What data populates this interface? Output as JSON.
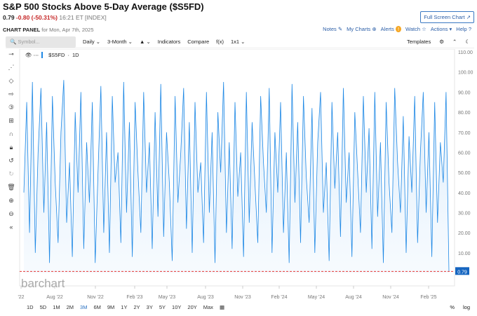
{
  "header": {
    "title": "S&P 500 Stocks Above 5-Day Average ($S5FD)",
    "last": "0.79",
    "change": "-0.80 (-50.31%)",
    "time": "16:21 ET [INDEX]",
    "full_screen": "Full Screen Chart",
    "panel_label": "CHART PANEL",
    "panel_date": "for Mon, Apr 7th, 2025"
  },
  "links": [
    "Notes",
    "My Charts",
    "Alerts",
    "Watch",
    "Actions",
    "Help"
  ],
  "toolbar": {
    "symbol_placeholder": "Symbol...",
    "interval": "Daily",
    "period": "3-Month",
    "indicators": "Indicators",
    "compare": "Compare",
    "fx": "f(x)",
    "layout": "1x1",
    "templates": "Templates"
  },
  "legend": {
    "symbol": "$S5FD",
    "interval": "1D"
  },
  "logo": "barchart",
  "ranges": [
    "1D",
    "5D",
    "1M",
    "2M",
    "3M",
    "6M",
    "9M",
    "1Y",
    "2Y",
    "3Y",
    "5Y",
    "10Y",
    "20Y",
    "Max"
  ],
  "active_range": "3M",
  "right_controls": [
    "%",
    "log"
  ],
  "colors": {
    "line": "#1e88e5",
    "price_line": "#e53935",
    "last_badge": "#1565c0"
  },
  "chart_data": {
    "type": "area",
    "title": "",
    "x_tick_labels": [
      "'22",
      "Aug '22",
      "Nov '22",
      "Feb '23",
      "May '23",
      "Aug '23",
      "Nov '23",
      "Feb '24",
      "May '24",
      "Aug '24",
      "Nov '24",
      "Feb '25"
    ],
    "y_tick_labels": [
      "110.00",
      "100.00",
      "90.00",
      "80.00",
      "70.00",
      "60.00",
      "50.00",
      "40.00",
      "30.00",
      "20.00",
      "10.00"
    ],
    "ylim": [
      0,
      110
    ],
    "last_value_label": "0.79",
    "grid": false,
    "values": [
      40,
      85,
      20,
      95,
      10,
      60,
      92,
      30,
      75,
      5,
      88,
      45,
      15,
      70,
      96,
      25,
      55,
      8,
      80,
      40,
      90,
      12,
      65,
      35,
      85,
      5,
      50,
      93,
      20,
      70,
      10,
      88,
      45,
      60,
      15,
      95,
      30,
      75,
      8,
      85,
      50,
      20,
      90,
      40,
      65,
      12,
      80,
      28,
      94,
      18,
      70,
      45,
      6,
      88,
      35,
      60,
      92,
      22,
      75,
      10,
      85,
      40,
      55,
      15,
      90,
      30,
      70,
      5,
      80,
      50,
      95,
      20,
      65,
      12,
      85,
      38,
      60,
      8,
      90,
      25,
      75,
      45,
      15,
      88,
      55,
      30,
      92,
      10,
      70,
      40,
      85,
      20,
      60,
      5,
      94,
      35,
      75,
      15,
      88,
      48,
      25,
      82,
      10,
      65,
      90,
      30,
      55,
      6,
      85,
      42,
      70,
      18,
      92,
      35,
      60,
      8,
      80,
      50,
      20,
      88,
      40,
      72,
      12,
      90,
      28,
      65,
      5,
      85,
      45,
      20,
      92,
      55,
      30,
      78,
      10,
      68,
      40,
      88,
      15,
      60,
      90,
      30,
      70,
      8,
      85,
      25,
      65,
      45,
      90,
      0.79
    ]
  }
}
